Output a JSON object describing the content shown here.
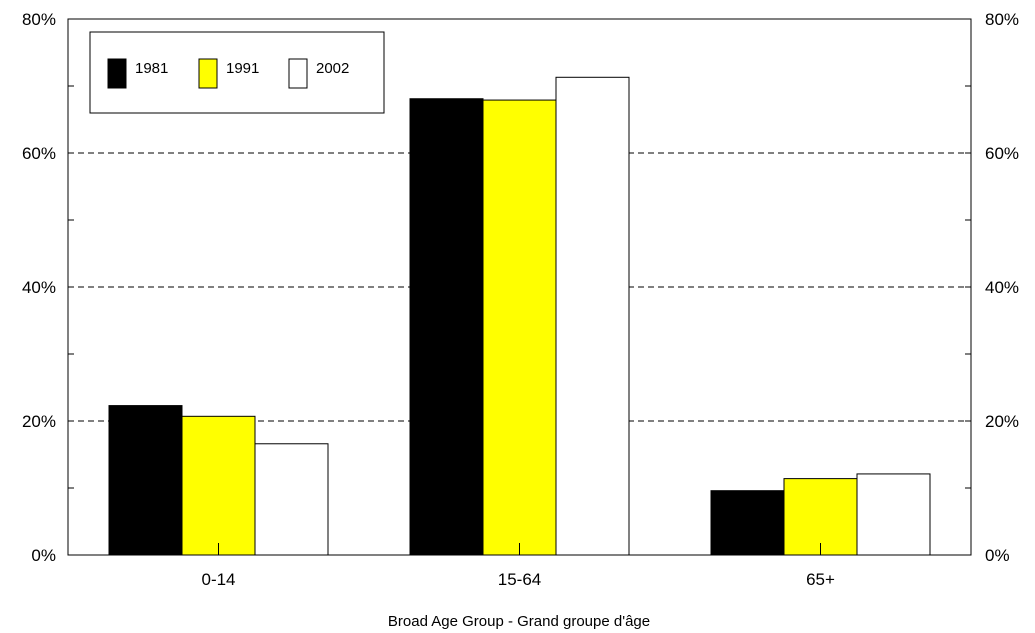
{
  "chart_data": {
    "type": "bar",
    "title": "",
    "xlabel": "Broad Age Group - Grand groupe d'âge",
    "ylabel": "",
    "categories": [
      "0-14",
      "15-64",
      "65+"
    ],
    "series": [
      {
        "name": "1981",
        "values": [
          22.3,
          68.1,
          9.6
        ],
        "color": "#000000"
      },
      {
        "name": "1991",
        "values": [
          20.7,
          67.9,
          11.4
        ],
        "color": "#ffff00"
      },
      {
        "name": "2002",
        "values": [
          16.6,
          71.3,
          12.1
        ],
        "color": "#ffffff"
      }
    ],
    "ylim": [
      0,
      80
    ],
    "y_ticks": [
      0,
      20,
      40,
      60,
      80
    ],
    "y_tick_labels": [
      "0%",
      "20%",
      "40%",
      "60%",
      "80%"
    ],
    "y_minor_ticks": [
      10,
      30,
      50,
      70
    ],
    "grid": "horizontal-dashed-major",
    "legend_position": "top-left",
    "secondary_y_axis": true
  }
}
